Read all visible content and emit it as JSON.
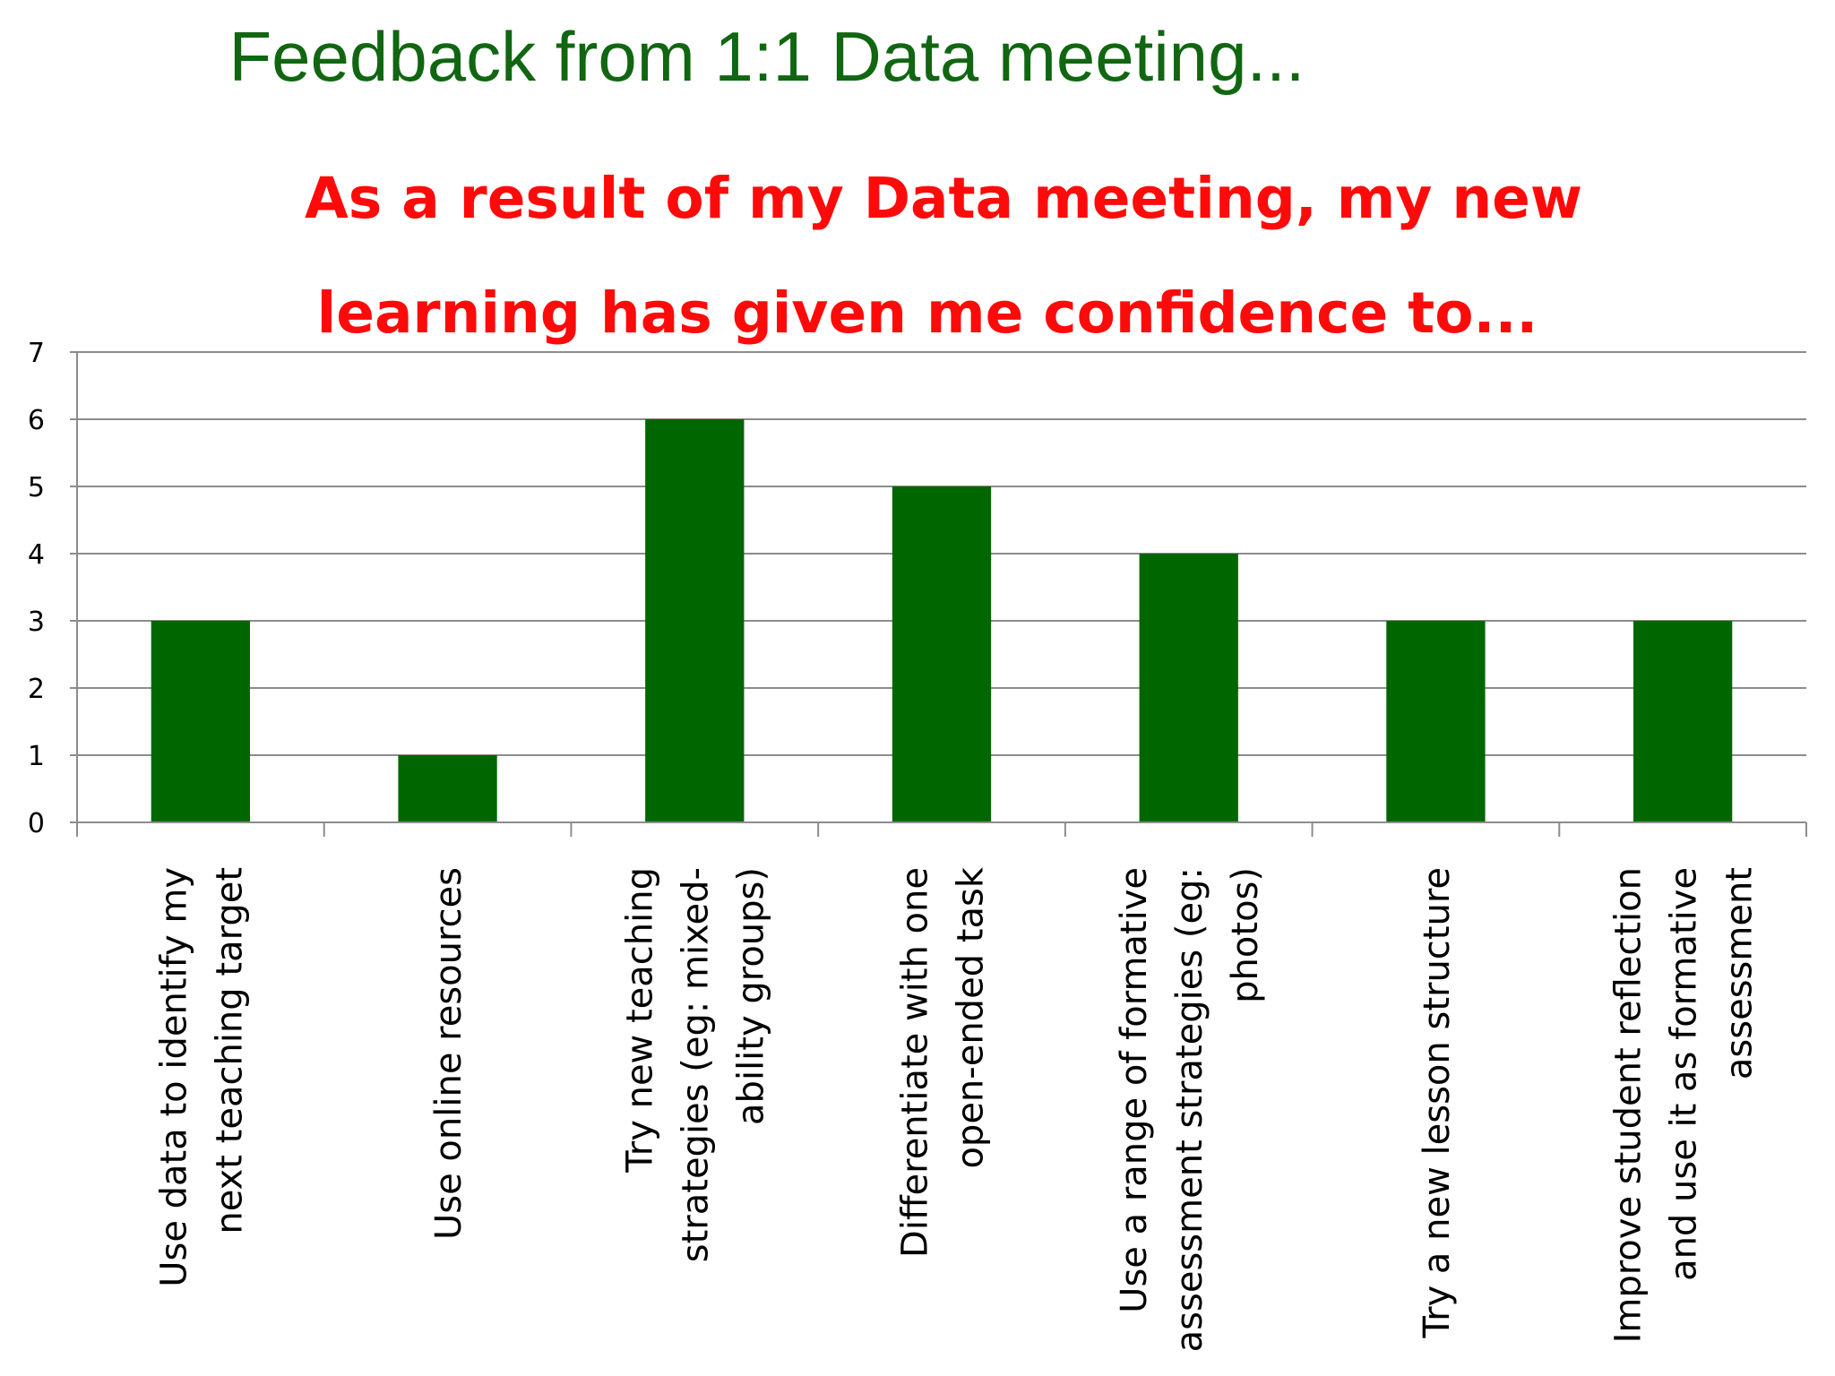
{
  "slide": {
    "title": "Feedback from 1:1 Data meeting..."
  },
  "colors": {
    "slide_title": "#116611",
    "chart_title": "#ff0a0a",
    "bar": "#006600",
    "gridline": "#8c8c8c",
    "axis": "#8c8c8c",
    "background": "#ffffff"
  },
  "chart_data": {
    "type": "bar",
    "title_lines": [
      "As a result of my Data meeting, my new",
      "learning has given me confidence to..."
    ],
    "xlabel": "",
    "ylabel": "",
    "ylim": [
      0,
      7
    ],
    "yticks": [
      0,
      1,
      2,
      3,
      4,
      5,
      6,
      7
    ],
    "grid": true,
    "legend": "none",
    "categories": [
      "Use data to identify my next teaching target",
      "Use online resources",
      "Try new teaching strategies (eg: mixed-ability groups)",
      "Differentiate with one open-ended task",
      "Use a range of formative assessment strategies (eg: photos)",
      "Try a new lesson structure",
      "Improve student reflection and use it as formative assessment"
    ],
    "category_label_lines": [
      [
        "Use data to identify my",
        "next teaching target"
      ],
      [
        "Use online resources"
      ],
      [
        "Try new teaching",
        "strategies (eg: mixed-",
        "ability groups)"
      ],
      [
        "Differentiate with one",
        "open-ended task"
      ],
      [
        "Use a range of formative",
        "assessment strategies (eg:",
        "photos)"
      ],
      [
        "Try a new lesson structure"
      ],
      [
        "Improve student reflection",
        "and use it as formative",
        "assessment"
      ]
    ],
    "values": [
      3,
      1,
      6,
      5,
      4,
      3,
      3
    ]
  }
}
